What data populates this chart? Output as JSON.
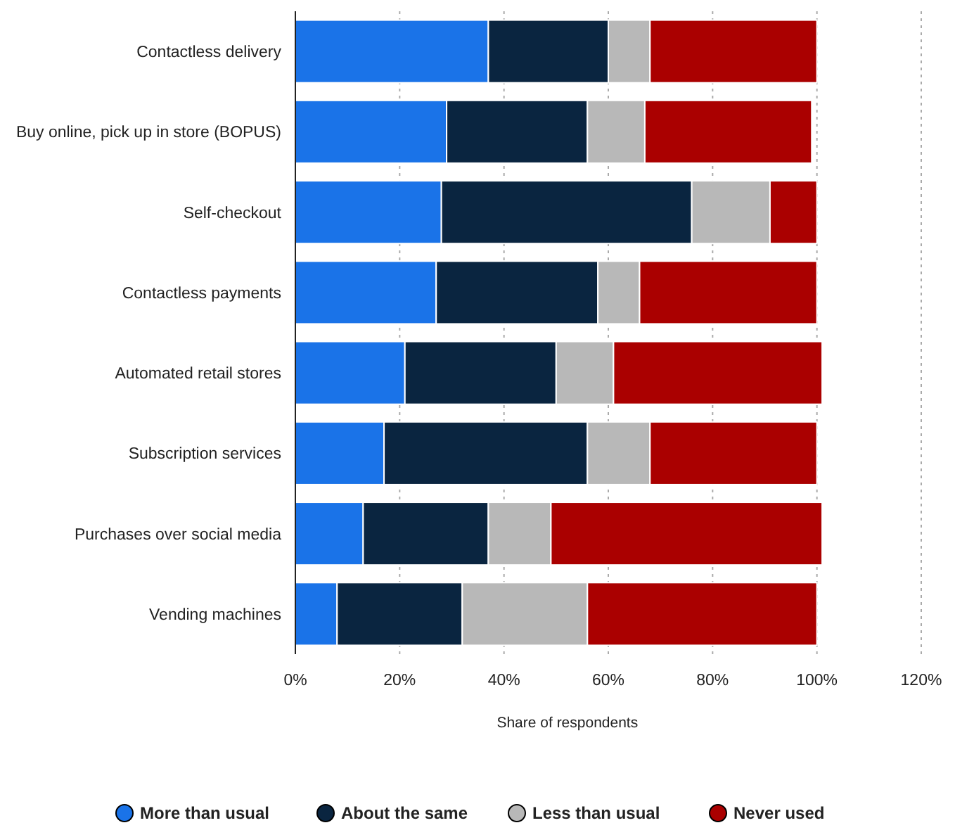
{
  "chart_data": {
    "type": "bar",
    "orientation": "horizontal",
    "stacked": true,
    "categories": [
      "Contactless delivery",
      "Buy online, pick up in store (BOPUS)",
      "Self-checkout",
      "Contactless payments",
      "Automated retail stores",
      "Subscription services",
      "Purchases over social media",
      "Vending machines"
    ],
    "series": [
      {
        "name": "More than usual",
        "color": "#1a73e8",
        "values": [
          37,
          29,
          28,
          27,
          21,
          17,
          13,
          8
        ]
      },
      {
        "name": "About the same",
        "color": "#0a2540",
        "values": [
          23,
          27,
          48,
          31,
          29,
          39,
          24,
          24
        ]
      },
      {
        "name": "Less than usual",
        "color": "#b8b8b8",
        "values": [
          8,
          11,
          15,
          8,
          11,
          12,
          12,
          24
        ]
      },
      {
        "name": "Never used",
        "color": "#aa0000",
        "values": [
          32,
          32,
          9,
          34,
          40,
          32,
          52,
          44
        ]
      }
    ],
    "xlabel": "Share of respondents",
    "xlim": [
      0,
      120
    ],
    "xticks": [
      {
        "value": 0,
        "label": "0%"
      },
      {
        "value": 20,
        "label": "20%"
      },
      {
        "value": 40,
        "label": "40%"
      },
      {
        "value": 60,
        "label": "60%"
      },
      {
        "value": 80,
        "label": "80%"
      },
      {
        "value": 100,
        "label": "100%"
      },
      {
        "value": 120,
        "label": "120%"
      }
    ],
    "grid": "x",
    "legend": "bottom"
  }
}
